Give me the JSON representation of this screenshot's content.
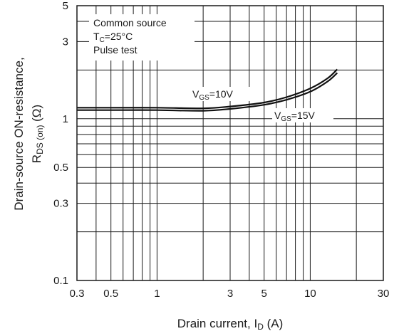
{
  "chart_data": {
    "type": "line",
    "x_scale": "log",
    "y_scale": "log",
    "xlim": [
      0.3,
      30
    ],
    "ylim": [
      0.1,
      5
    ],
    "grid": true,
    "x_ticks": [
      {
        "value": 0.3,
        "label": "0.3"
      },
      {
        "value": 0.5,
        "label": "0.5"
      },
      {
        "value": 1,
        "label": "1"
      },
      {
        "value": 3,
        "label": "3"
      },
      {
        "value": 5,
        "label": "5"
      },
      {
        "value": 10,
        "label": "10"
      },
      {
        "value": 30,
        "label": "30"
      }
    ],
    "y_ticks": [
      {
        "value": 0.1,
        "label": "0.1"
      },
      {
        "value": 0.3,
        "label": "0.3"
      },
      {
        "value": 0.5,
        "label": "0.5"
      },
      {
        "value": 1,
        "label": "1"
      },
      {
        "value": 3,
        "label": "3"
      },
      {
        "value": 5,
        "label": "5"
      }
    ],
    "x_minor_gridlines": [
      0.4,
      0.6,
      0.7,
      0.8,
      0.9,
      2,
      4,
      6,
      7,
      8,
      9,
      20
    ],
    "y_minor_gridlines": [
      0.2,
      0.4,
      0.6,
      0.7,
      0.8,
      0.9,
      2,
      4
    ],
    "xlabel": {
      "main": "Drain current, I",
      "sub": "D",
      "tail": " (A)"
    },
    "ylabel": {
      "line1": "Drain-source ON-resistance,",
      "line2_main": "R",
      "line2_sub": "DS (on)",
      "line2_tail": " (Ω)"
    },
    "conditions": [
      {
        "main": "Common source",
        "sub": "",
        "tail": ""
      },
      {
        "main": "T",
        "sub": "C",
        "tail": "=25°C"
      },
      {
        "main": "Pulse test",
        "sub": "",
        "tail": ""
      }
    ],
    "series": [
      {
        "label_main": "V",
        "label_sub": "GS",
        "label_tail": "=10V",
        "x": [
          0.3,
          0.5,
          1,
          2,
          3,
          5,
          7,
          10,
          13,
          15
        ],
        "y": [
          1.17,
          1.17,
          1.17,
          1.16,
          1.19,
          1.26,
          1.36,
          1.54,
          1.78,
          2.02
        ]
      },
      {
        "label_main": "V",
        "label_sub": "GS",
        "label_tail": "=15V",
        "x": [
          0.3,
          0.5,
          1,
          2,
          3,
          5,
          7,
          10,
          13,
          15
        ],
        "y": [
          1.13,
          1.13,
          1.13,
          1.12,
          1.15,
          1.22,
          1.31,
          1.47,
          1.7,
          1.92
        ]
      }
    ]
  }
}
